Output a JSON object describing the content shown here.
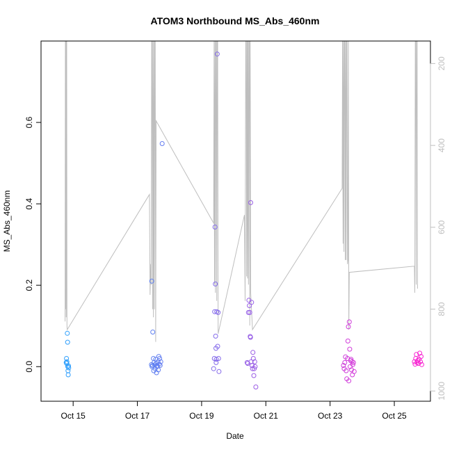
{
  "chart_data": {
    "type": "scatter",
    "title": "ATOM3 Northbound MS_Abs_460nm",
    "xlabel": "Date",
    "ylabel": "MS_Abs_460nm",
    "xlim": [
      "2016-10-14T00:00",
      "2016-10-26T03:00"
    ],
    "ylim": [
      -0.085,
      0.8
    ],
    "x_ticks": [
      "Oct 15",
      "Oct 17",
      "Oct 19",
      "Oct 21",
      "Oct 23",
      "Oct 25"
    ],
    "y_ticks": [
      "0.0",
      "0.2",
      "0.4",
      "0.6"
    ],
    "y2_ticks": [
      "200",
      "400",
      "600",
      "800",
      "1000"
    ],
    "y2lim": [
      1025,
      145
    ],
    "y2_reversed": true,
    "grid": false,
    "legend": "none",
    "colors": {
      "line_series": "#bebebe",
      "points_start": "#1fa8ff",
      "points_end": "#ff1fd0",
      "axis": "#000000",
      "right_axis": "#bfbfbf"
    },
    "points": [
      {
        "x": "2016-10-14T18:50",
        "y": 0.01
      },
      {
        "x": "2016-10-14T19:00",
        "y": 0.02
      },
      {
        "x": "2016-10-14T19:10",
        "y": 0.008
      },
      {
        "x": "2016-10-14T19:20",
        "y": 0.012
      },
      {
        "x": "2016-10-14T19:40",
        "y": 0.082
      },
      {
        "x": "2016-10-14T19:50",
        "y": 0.06
      },
      {
        "x": "2016-10-14T20:00",
        "y": 0.0
      },
      {
        "x": "2016-10-14T20:10",
        "y": -0.01
      },
      {
        "x": "2016-10-14T20:20",
        "y": -0.02
      },
      {
        "x": "2016-10-14T20:30",
        "y": 0.002
      },
      {
        "x": "2016-10-14T20:40",
        "y": -0.003
      },
      {
        "x": "2016-10-17T10:30",
        "y": 0.005
      },
      {
        "x": "2016-10-17T10:45",
        "y": 0.21
      },
      {
        "x": "2016-10-17T11:00",
        "y": 0.0
      },
      {
        "x": "2016-10-17T11:15",
        "y": 0.003
      },
      {
        "x": "2016-10-17T11:30",
        "y": 0.085
      },
      {
        "x": "2016-10-17T12:00",
        "y": 0.02
      },
      {
        "x": "2016-10-17T12:15",
        "y": -0.01
      },
      {
        "x": "2016-10-17T12:30",
        "y": 0.01
      },
      {
        "x": "2016-10-17T13:00",
        "y": 0.004
      },
      {
        "x": "2016-10-17T13:15",
        "y": -0.005
      },
      {
        "x": "2016-10-17T13:40",
        "y": 0.018
      },
      {
        "x": "2016-10-17T14:00",
        "y": 0.008
      },
      {
        "x": "2016-10-17T14:20",
        "y": -0.015
      },
      {
        "x": "2016-10-17T14:40",
        "y": 0.0
      },
      {
        "x": "2016-10-17T15:00",
        "y": 0.002
      },
      {
        "x": "2016-10-17T15:20",
        "y": 0.012
      },
      {
        "x": "2016-10-17T15:40",
        "y": -0.008
      },
      {
        "x": "2016-10-17T16:00",
        "y": 0.025
      },
      {
        "x": "2016-10-17T16:20",
        "y": 0.006
      },
      {
        "x": "2016-10-17T16:40",
        "y": 0.02
      },
      {
        "x": "2016-10-17T17:00",
        "y": 0.003
      },
      {
        "x": "2016-10-17T17:30",
        "y": 0.012
      },
      {
        "x": "2016-10-17T18:30",
        "y": 0.548
      },
      {
        "x": "2016-10-19T09:00",
        "y": -0.005
      },
      {
        "x": "2016-10-19T09:30",
        "y": 0.02
      },
      {
        "x": "2016-10-19T09:45",
        "y": 0.135
      },
      {
        "x": "2016-10-19T10:00",
        "y": 0.343
      },
      {
        "x": "2016-10-19T10:15",
        "y": 0.203
      },
      {
        "x": "2016-10-19T10:30",
        "y": 0.075
      },
      {
        "x": "2016-10-19T10:40",
        "y": 0.045
      },
      {
        "x": "2016-10-19T10:50",
        "y": 0.01
      },
      {
        "x": "2016-10-19T11:00",
        "y": 0.018
      },
      {
        "x": "2016-10-19T11:20",
        "y": 0.135
      },
      {
        "x": "2016-10-19T11:40",
        "y": 0.768
      },
      {
        "x": "2016-10-19T12:00",
        "y": 0.05
      },
      {
        "x": "2016-10-19T12:20",
        "y": 0.133
      },
      {
        "x": "2016-10-19T12:40",
        "y": 0.02
      },
      {
        "x": "2016-10-19T13:00",
        "y": -0.012
      },
      {
        "x": "2016-10-20T10:00",
        "y": 0.01
      },
      {
        "x": "2016-10-20T10:30",
        "y": 0.008
      },
      {
        "x": "2016-10-20T11:00",
        "y": 0.133
      },
      {
        "x": "2016-10-20T11:20",
        "y": 0.163
      },
      {
        "x": "2016-10-20T11:40",
        "y": 0.15
      },
      {
        "x": "2016-10-20T12:00",
        "y": 0.133
      },
      {
        "x": "2016-10-20T12:20",
        "y": 0.074
      },
      {
        "x": "2016-10-20T12:30",
        "y": 0.072
      },
      {
        "x": "2016-10-20T12:40",
        "y": 0.403
      },
      {
        "x": "2016-10-20T13:00",
        "y": 0.012
      },
      {
        "x": "2016-10-20T13:20",
        "y": 0.158
      },
      {
        "x": "2016-10-20T13:40",
        "y": 0.003
      },
      {
        "x": "2016-10-20T14:00",
        "y": -0.005
      },
      {
        "x": "2016-10-20T14:20",
        "y": 0.035
      },
      {
        "x": "2016-10-20T14:40",
        "y": 0.02
      },
      {
        "x": "2016-10-20T15:00",
        "y": -0.022
      },
      {
        "x": "2016-10-20T15:20",
        "y": -0.005
      },
      {
        "x": "2016-10-20T15:40",
        "y": 0.012
      },
      {
        "x": "2016-10-20T16:00",
        "y": 0.0
      },
      {
        "x": "2016-10-20T16:30",
        "y": -0.05
      },
      {
        "x": "2016-10-23T10:00",
        "y": 0.003
      },
      {
        "x": "2016-10-23T10:30",
        "y": -0.005
      },
      {
        "x": "2016-10-23T11:00",
        "y": 0.01
      },
      {
        "x": "2016-10-23T11:30",
        "y": 0.024
      },
      {
        "x": "2016-10-23T12:00",
        "y": -0.01
      },
      {
        "x": "2016-10-23T12:30",
        "y": -0.03
      },
      {
        "x": "2016-10-23T13:00",
        "y": 0.02
      },
      {
        "x": "2016-10-23T13:20",
        "y": 0.063
      },
      {
        "x": "2016-10-23T13:40",
        "y": 0.098
      },
      {
        "x": "2016-10-23T14:00",
        "y": -0.035
      },
      {
        "x": "2016-10-23T14:20",
        "y": 0.11
      },
      {
        "x": "2016-10-23T14:40",
        "y": 0.043
      },
      {
        "x": "2016-10-23T15:00",
        "y": 0.0
      },
      {
        "x": "2016-10-23T15:20",
        "y": 0.015
      },
      {
        "x": "2016-10-23T15:40",
        "y": 0.018
      },
      {
        "x": "2016-10-23T16:00",
        "y": -0.008
      },
      {
        "x": "2016-10-23T16:20",
        "y": 0.012
      },
      {
        "x": "2016-10-23T16:40",
        "y": -0.02
      },
      {
        "x": "2016-10-23T17:00",
        "y": 0.005
      },
      {
        "x": "2016-10-23T17:30",
        "y": 0.01
      },
      {
        "x": "2016-10-23T18:00",
        "y": -0.012
      },
      {
        "x": "2016-10-25T15:00",
        "y": 0.012
      },
      {
        "x": "2016-10-25T15:30",
        "y": 0.006
      },
      {
        "x": "2016-10-25T16:00",
        "y": 0.02
      },
      {
        "x": "2016-10-25T16:30",
        "y": 0.03
      },
      {
        "x": "2016-10-25T17:00",
        "y": 0.01
      },
      {
        "x": "2016-10-25T17:30",
        "y": 0.015
      },
      {
        "x": "2016-10-25T18:00",
        "y": 0.008
      },
      {
        "x": "2016-10-25T18:30",
        "y": 0.018
      },
      {
        "x": "2016-10-25T19:00",
        "y": 0.033
      },
      {
        "x": "2016-10-25T19:30",
        "y": 0.012
      },
      {
        "x": "2016-10-25T20:00",
        "y": 0.025
      },
      {
        "x": "2016-10-25T20:30",
        "y": 0.005
      }
    ],
    "line_series": [
      {
        "x": "2016-10-14T18:00",
        "y2": 830
      },
      {
        "x": "2016-10-14T18:12",
        "y2": 145
      },
      {
        "x": "2016-10-14T18:24",
        "y2": 800
      },
      {
        "x": "2016-10-14T18:36",
        "y2": 145
      },
      {
        "x": "2016-10-14T18:48",
        "y2": 820
      },
      {
        "x": "2016-10-14T19:00",
        "y2": 145
      },
      {
        "x": "2016-10-14T19:12",
        "y2": 145
      },
      {
        "x": "2016-10-14T19:24",
        "y2": 840
      },
      {
        "x": "2016-10-14T19:36",
        "y2": 850
      },
      {
        "x": "2016-10-17T09:00",
        "y2": 520
      },
      {
        "x": "2016-10-17T09:30",
        "y2": 765
      },
      {
        "x": "2016-10-17T10:00",
        "y2": 690
      },
      {
        "x": "2016-10-17T10:20",
        "y2": 740
      },
      {
        "x": "2016-10-17T10:40",
        "y2": 145
      },
      {
        "x": "2016-10-17T11:00",
        "y2": 145
      },
      {
        "x": "2016-10-17T11:20",
        "y2": 800
      },
      {
        "x": "2016-10-17T11:40",
        "y2": 145
      },
      {
        "x": "2016-10-17T12:00",
        "y2": 820
      },
      {
        "x": "2016-10-17T12:20",
        "y2": 145
      },
      {
        "x": "2016-10-17T12:40",
        "y2": 800
      },
      {
        "x": "2016-10-17T13:00",
        "y2": 145
      },
      {
        "x": "2016-10-17T13:20",
        "y2": 145
      },
      {
        "x": "2016-10-17T13:40",
        "y2": 880
      },
      {
        "x": "2016-10-17T14:00",
        "y2": 340
      },
      {
        "x": "2016-10-19T09:00",
        "y2": 590
      },
      {
        "x": "2016-10-19T09:20",
        "y2": 145
      },
      {
        "x": "2016-10-19T09:40",
        "y2": 740
      },
      {
        "x": "2016-10-19T10:00",
        "y2": 145
      },
      {
        "x": "2016-10-19T10:20",
        "y2": 760
      },
      {
        "x": "2016-10-19T10:40",
        "y2": 145
      },
      {
        "x": "2016-10-19T11:00",
        "y2": 145
      },
      {
        "x": "2016-10-19T11:20",
        "y2": 780
      },
      {
        "x": "2016-10-19T11:40",
        "y2": 145
      },
      {
        "x": "2016-10-19T12:00",
        "y2": 145
      },
      {
        "x": "2016-10-19T12:20",
        "y2": 860
      },
      {
        "x": "2016-10-20T08:00",
        "y2": 570
      },
      {
        "x": "2016-10-20T08:30",
        "y2": 780
      },
      {
        "x": "2016-10-20T09:00",
        "y2": 145
      },
      {
        "x": "2016-10-20T09:20",
        "y2": 145
      },
      {
        "x": "2016-10-20T09:40",
        "y2": 720
      },
      {
        "x": "2016-10-20T10:00",
        "y2": 145
      },
      {
        "x": "2016-10-20T10:20",
        "y2": 725
      },
      {
        "x": "2016-10-20T10:40",
        "y2": 145
      },
      {
        "x": "2016-10-20T11:00",
        "y2": 740
      },
      {
        "x": "2016-10-20T11:20",
        "y2": 145
      },
      {
        "x": "2016-10-20T11:40",
        "y2": 145
      },
      {
        "x": "2016-10-20T12:00",
        "y2": 840
      },
      {
        "x": "2016-10-20T12:20",
        "y2": 145
      },
      {
        "x": "2016-10-20T12:40",
        "y2": 760
      },
      {
        "x": "2016-10-20T14:00",
        "y2": 850
      },
      {
        "x": "2016-10-23T09:00",
        "y2": 505
      },
      {
        "x": "2016-10-23T09:20",
        "y2": 145
      },
      {
        "x": "2016-10-23T09:40",
        "y2": 640
      },
      {
        "x": "2016-10-23T10:00",
        "y2": 145
      },
      {
        "x": "2016-10-23T10:20",
        "y2": 660
      },
      {
        "x": "2016-10-23T10:40",
        "y2": 145
      },
      {
        "x": "2016-10-23T11:00",
        "y2": 145
      },
      {
        "x": "2016-10-23T11:20",
        "y2": 680
      },
      {
        "x": "2016-10-23T11:40",
        "y2": 145
      },
      {
        "x": "2016-10-23T12:00",
        "y2": 680
      },
      {
        "x": "2016-10-23T12:20",
        "y2": 145
      },
      {
        "x": "2016-10-23T12:40",
        "y2": 145
      },
      {
        "x": "2016-10-23T13:00",
        "y2": 690
      },
      {
        "x": "2016-10-23T13:20",
        "y2": 680
      },
      {
        "x": "2016-10-23T13:40",
        "y2": 145
      },
      {
        "x": "2016-10-23T14:00",
        "y2": 850
      },
      {
        "x": "2016-10-23T14:20",
        "y2": 710
      },
      {
        "x": "2016-10-25T15:00",
        "y2": 695
      },
      {
        "x": "2016-10-25T15:20",
        "y2": 760
      },
      {
        "x": "2016-10-25T15:40",
        "y2": 145
      },
      {
        "x": "2016-10-25T16:00",
        "y2": 145
      },
      {
        "x": "2016-10-25T16:20",
        "y2": 740
      },
      {
        "x": "2016-10-25T16:40",
        "y2": 145
      },
      {
        "x": "2016-10-25T17:00",
        "y2": 145
      },
      {
        "x": "2016-10-25T17:20",
        "y2": 750
      }
    ]
  }
}
